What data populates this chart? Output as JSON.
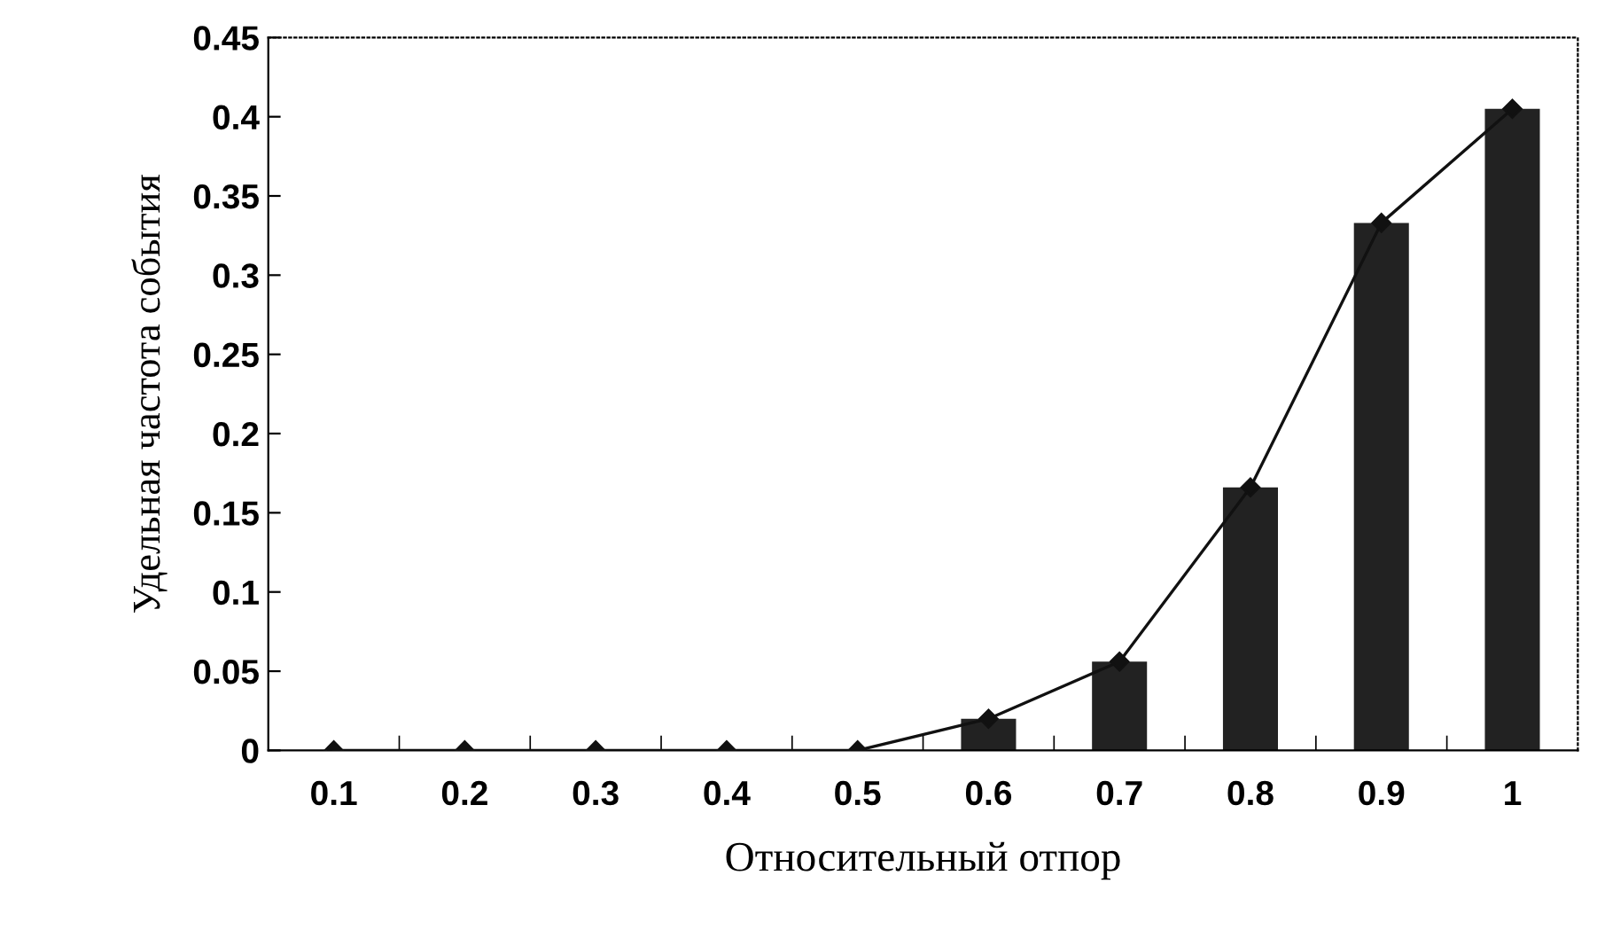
{
  "chart_data": {
    "type": "bar",
    "xlabel": "Относительный отпор",
    "ylabel": "Удельная частота события",
    "categories": [
      "0.1",
      "0.2",
      "0.3",
      "0.4",
      "0.5",
      "0.6",
      "0.7",
      "0.8",
      "0.9",
      "1"
    ],
    "series": [
      {
        "color": "#222222",
        "values": [
          0,
          0,
          0,
          0,
          0,
          0.02,
          0.056,
          0.166,
          0.333,
          0.405
        ]
      },
      {
        "type": "line",
        "color": "#111111",
        "marker": "diamond",
        "values": [
          0,
          0,
          0,
          0,
          0,
          0.02,
          0.056,
          0.166,
          0.333,
          0.405
        ]
      }
    ],
    "ylim": [
      0,
      0.45
    ],
    "yticks": [
      0,
      0.05,
      0.1,
      0.15,
      0.2,
      0.25,
      0.3,
      0.35,
      0.4,
      0.45
    ],
    "grid": false,
    "legend": false
  }
}
